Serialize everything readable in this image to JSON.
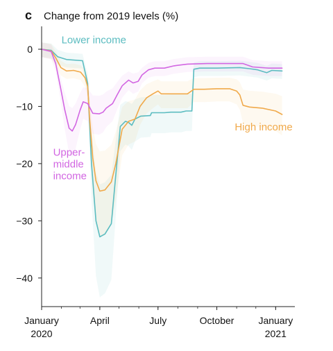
{
  "chart_data": {
    "type": "line",
    "panel_label": "c",
    "title": "Change from 2019 levels (%)",
    "xlabel": "",
    "ylabel": "",
    "ylim": [
      -45,
      4
    ],
    "yticks": [
      0,
      -10,
      -20,
      -30,
      -40
    ],
    "xlim": [
      "2020-01-01",
      "2021-01-31"
    ],
    "xticks": [
      {
        "date": "2020-01-01",
        "label": [
          "January",
          "2020"
        ]
      },
      {
        "date": "2020-04-01",
        "label": [
          "April"
        ]
      },
      {
        "date": "2020-07-01",
        "label": [
          "July"
        ]
      },
      {
        "date": "2020-10-01",
        "label": [
          "October"
        ]
      },
      {
        "date": "2021-01-01",
        "label": [
          "January",
          "2021"
        ]
      }
    ],
    "grid": false,
    "legend": "direct labels",
    "series": [
      {
        "name": "Lower income",
        "label_lines": [
          "Lower income"
        ],
        "color": "#5bbcc0",
        "band_color": "#5bbcc0",
        "points": [
          [
            "2020-01-01",
            0
          ],
          [
            "2020-01-16",
            -0.2
          ],
          [
            "2020-01-26",
            -1.3
          ],
          [
            "2020-02-09",
            -1.8
          ],
          [
            "2020-03-05",
            -2.0
          ],
          [
            "2020-03-13",
            -6
          ],
          [
            "2020-03-19",
            -20
          ],
          [
            "2020-03-26",
            -30
          ],
          [
            "2020-04-01",
            -32.8
          ],
          [
            "2020-04-09",
            -32.3
          ],
          [
            "2020-04-19",
            -30.5
          ],
          [
            "2020-04-26",
            -22
          ],
          [
            "2020-05-03",
            -13.5
          ],
          [
            "2020-05-11",
            -12.6
          ],
          [
            "2020-05-16",
            -12.8
          ],
          [
            "2020-05-21",
            -13.3
          ],
          [
            "2020-05-26",
            -12.2
          ],
          [
            "2020-06-04",
            -11.7
          ],
          [
            "2020-06-19",
            -11.6
          ],
          [
            "2020-06-21",
            -11.1
          ],
          [
            "2020-07-11",
            -11.1
          ],
          [
            "2020-07-21",
            -11.0
          ],
          [
            "2020-08-06",
            -11.0
          ],
          [
            "2020-08-14",
            -10.8
          ],
          [
            "2020-08-23",
            -10.8
          ],
          [
            "2020-08-26",
            -3.5
          ],
          [
            "2020-09-04",
            -3.3
          ],
          [
            "2020-10-01",
            -3.3
          ],
          [
            "2020-11-06",
            -3.2
          ],
          [
            "2020-11-21",
            -3.4
          ],
          [
            "2020-12-04",
            -3.6
          ],
          [
            "2020-12-18",
            -4.1
          ],
          [
            "2020-12-26",
            -3.7
          ],
          [
            "2021-01-11",
            -3.8
          ]
        ]
      },
      {
        "name": "High income",
        "label_lines": [
          "High income"
        ],
        "color": "#f0a94a",
        "band_color": "#f4b75e",
        "points": [
          [
            "2020-01-01",
            0
          ],
          [
            "2020-01-16",
            -0.3
          ],
          [
            "2020-01-23",
            -1.5
          ],
          [
            "2020-01-31",
            -3.2
          ],
          [
            "2020-02-09",
            -3.8
          ],
          [
            "2020-02-20",
            -3.7
          ],
          [
            "2020-03-02",
            -4.0
          ],
          [
            "2020-03-09",
            -5.0
          ],
          [
            "2020-03-13",
            -6.5
          ],
          [
            "2020-03-16",
            -12
          ],
          [
            "2020-03-21",
            -19
          ],
          [
            "2020-03-26",
            -23
          ],
          [
            "2020-04-01",
            -24.8
          ],
          [
            "2020-04-09",
            -24.6
          ],
          [
            "2020-04-19",
            -23.2
          ],
          [
            "2020-04-26",
            -20
          ],
          [
            "2020-05-06",
            -14
          ],
          [
            "2020-05-16",
            -12.6
          ],
          [
            "2020-05-26",
            -12.2
          ],
          [
            "2020-06-03",
            -10
          ],
          [
            "2020-06-13",
            -8.5
          ],
          [
            "2020-06-23",
            -7.8
          ],
          [
            "2020-07-01",
            -7.3
          ],
          [
            "2020-07-06",
            -7.8
          ],
          [
            "2020-07-21",
            -7.8
          ],
          [
            "2020-08-16",
            -7.8
          ],
          [
            "2020-08-26",
            -7.0
          ],
          [
            "2020-09-11",
            -7.0
          ],
          [
            "2020-10-01",
            -6.9
          ],
          [
            "2020-10-21",
            -6.9
          ],
          [
            "2020-11-01",
            -7.3
          ],
          [
            "2020-11-06",
            -8.0
          ],
          [
            "2020-11-11",
            -9.8
          ],
          [
            "2020-11-21",
            -10.1
          ],
          [
            "2020-12-11",
            -10.3
          ],
          [
            "2021-01-01",
            -10.8
          ],
          [
            "2021-01-11",
            -11.4
          ]
        ]
      },
      {
        "name": "Upper-middle income",
        "label_lines": [
          "Upper-",
          "middle",
          "income"
        ],
        "color": "#d266e2",
        "band_color": "#d98ae8",
        "points": [
          [
            "2020-01-01",
            0
          ],
          [
            "2020-01-16",
            -0.4
          ],
          [
            "2020-01-23",
            -2.5
          ],
          [
            "2020-01-31",
            -7.0
          ],
          [
            "2020-02-06",
            -10.5
          ],
          [
            "2020-02-13",
            -13.8
          ],
          [
            "2020-02-18",
            -14.3
          ],
          [
            "2020-02-23",
            -13.2
          ],
          [
            "2020-03-01",
            -10.7
          ],
          [
            "2020-03-06",
            -9.2
          ],
          [
            "2020-03-13",
            -9.5
          ],
          [
            "2020-03-21",
            -11.2
          ],
          [
            "2020-03-31",
            -11.3
          ],
          [
            "2020-04-06",
            -11.0
          ],
          [
            "2020-04-11",
            -10.3
          ],
          [
            "2020-04-21",
            -9.5
          ],
          [
            "2020-04-28",
            -8.0
          ],
          [
            "2020-05-06",
            -6.4
          ],
          [
            "2020-05-16",
            -5.4
          ],
          [
            "2020-05-23",
            -5.9
          ],
          [
            "2020-05-31",
            -5.6
          ],
          [
            "2020-06-06",
            -4.5
          ],
          [
            "2020-06-16",
            -3.6
          ],
          [
            "2020-06-26",
            -3.3
          ],
          [
            "2020-07-11",
            -3.3
          ],
          [
            "2020-07-26",
            -2.9
          ],
          [
            "2020-08-16",
            -2.6
          ],
          [
            "2020-09-16",
            -2.5
          ],
          [
            "2020-10-16",
            -2.5
          ],
          [
            "2020-11-11",
            -2.5
          ],
          [
            "2020-11-26",
            -3.1
          ],
          [
            "2020-12-21",
            -3.3
          ],
          [
            "2021-01-11",
            -3.3
          ]
        ]
      }
    ]
  }
}
